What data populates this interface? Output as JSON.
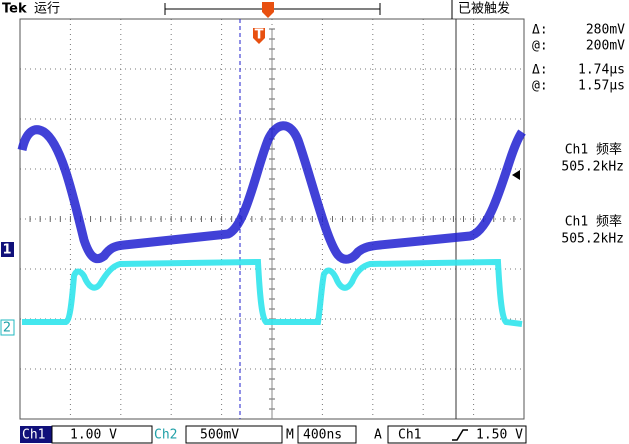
{
  "header": {
    "brand": "Tek",
    "status": "运行",
    "trigger_state": "已被触发"
  },
  "cursors": [
    {
      "symbol": "Δ:",
      "value": "280mV"
    },
    {
      "symbol": "@:",
      "value": "200mV"
    },
    {
      "symbol": "Δ:",
      "value": "1.74µs"
    },
    {
      "symbol": "@:",
      "value": "1.57µs"
    }
  ],
  "measurements": [
    {
      "label": "Ch1 频率",
      "value": "505.2kHz"
    },
    {
      "label": "Ch1 频率",
      "value": "505.2kHz"
    }
  ],
  "markers": {
    "ch1": "1",
    "ch2": "2",
    "trigger": "T"
  },
  "footer": {
    "ch1_label": "Ch1",
    "ch1_scale": "1.00 V",
    "ch2_label": "Ch2",
    "ch2_scale": "500mV",
    "time_label": "M",
    "time_scale": "400ns",
    "trigger_label": "A",
    "trigger_source": "Ch1",
    "trigger_level": "1.50 V"
  }
}
